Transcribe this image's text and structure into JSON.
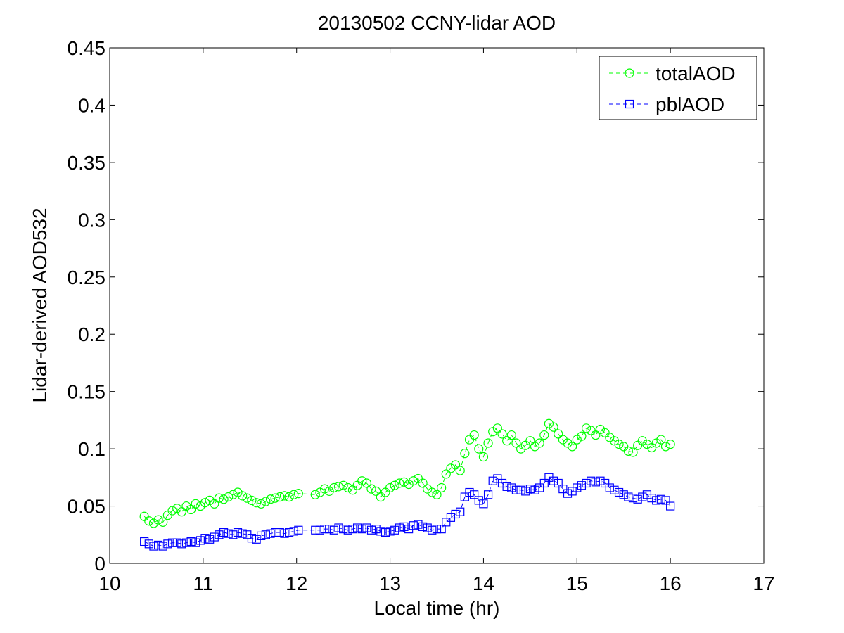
{
  "chart_data": {
    "type": "line",
    "title": "20130502 CCNY-lidar AOD",
    "xlabel": "Local time (hr)",
    "ylabel": "Lidar-derived AOD532",
    "xlim": [
      10,
      17
    ],
    "ylim": [
      0,
      0.45
    ],
    "x_ticks": [
      "10",
      "11",
      "12",
      "13",
      "14",
      "15",
      "16",
      "17"
    ],
    "y_ticks": [
      "0",
      "0.05",
      "0.1",
      "0.15",
      "0.2",
      "0.25",
      "0.3",
      "0.35",
      "0.4",
      "0.45"
    ],
    "grid": false,
    "legend_position": "top-right",
    "series": [
      {
        "name": "totalAOD",
        "color": "#00ff00",
        "marker": "circle",
        "line_style": "dashed",
        "x": [
          10.37,
          10.42,
          10.47,
          10.52,
          10.57,
          10.62,
          10.67,
          10.72,
          10.77,
          10.82,
          10.87,
          10.92,
          10.97,
          11.02,
          11.07,
          11.12,
          11.17,
          11.22,
          11.27,
          11.32,
          11.37,
          11.42,
          11.47,
          11.52,
          11.57,
          11.62,
          11.67,
          11.72,
          11.77,
          11.82,
          11.87,
          11.92,
          11.97,
          12.02,
          12.2,
          12.25,
          12.3,
          12.35,
          12.4,
          12.45,
          12.5,
          12.55,
          12.6,
          12.65,
          12.7,
          12.75,
          12.8,
          12.85,
          12.9,
          12.95,
          13.0,
          13.05,
          13.1,
          13.15,
          13.2,
          13.25,
          13.3,
          13.35,
          13.4,
          13.45,
          13.5,
          13.55,
          13.6,
          13.65,
          13.7,
          13.75,
          13.8,
          13.85,
          13.9,
          13.95,
          14.0,
          14.05,
          14.1,
          14.15,
          14.2,
          14.25,
          14.3,
          14.35,
          14.4,
          14.45,
          14.5,
          14.55,
          14.6,
          14.65,
          14.7,
          14.75,
          14.8,
          14.85,
          14.9,
          14.95,
          15.0,
          15.05,
          15.1,
          15.15,
          15.2,
          15.25,
          15.3,
          15.35,
          15.4,
          15.45,
          15.5,
          15.55,
          15.6,
          15.65,
          15.7,
          15.75,
          15.8,
          15.85,
          15.9,
          15.95,
          16.0
        ],
        "y": [
          0.041,
          0.037,
          0.035,
          0.038,
          0.036,
          0.042,
          0.046,
          0.048,
          0.045,
          0.05,
          0.047,
          0.052,
          0.05,
          0.053,
          0.055,
          0.052,
          0.057,
          0.056,
          0.058,
          0.06,
          0.062,
          0.059,
          0.057,
          0.055,
          0.053,
          0.052,
          0.054,
          0.056,
          0.057,
          0.058,
          0.059,
          0.058,
          0.06,
          0.061,
          0.06,
          0.062,
          0.065,
          0.063,
          0.066,
          0.067,
          0.068,
          0.066,
          0.064,
          0.068,
          0.072,
          0.07,
          0.065,
          0.063,
          0.058,
          0.062,
          0.066,
          0.068,
          0.07,
          0.071,
          0.069,
          0.072,
          0.074,
          0.07,
          0.065,
          0.062,
          0.06,
          0.066,
          0.078,
          0.083,
          0.086,
          0.081,
          0.096,
          0.108,
          0.112,
          0.1,
          0.093,
          0.105,
          0.115,
          0.118,
          0.113,
          0.107,
          0.112,
          0.105,
          0.1,
          0.103,
          0.107,
          0.102,
          0.105,
          0.112,
          0.122,
          0.119,
          0.113,
          0.108,
          0.105,
          0.102,
          0.108,
          0.111,
          0.118,
          0.116,
          0.112,
          0.117,
          0.114,
          0.11,
          0.107,
          0.104,
          0.102,
          0.098,
          0.097,
          0.103,
          0.107,
          0.104,
          0.101,
          0.105,
          0.108,
          0.102,
          0.104
        ]
      },
      {
        "name": "pblAOD",
        "color": "#0000ff",
        "marker": "square",
        "line_style": "dashed",
        "x": [
          10.37,
          10.42,
          10.47,
          10.52,
          10.57,
          10.62,
          10.67,
          10.72,
          10.77,
          10.82,
          10.87,
          10.92,
          10.97,
          11.02,
          11.07,
          11.12,
          11.17,
          11.22,
          11.27,
          11.32,
          11.37,
          11.42,
          11.47,
          11.52,
          11.57,
          11.62,
          11.67,
          11.72,
          11.77,
          11.82,
          11.87,
          11.92,
          11.97,
          12.02,
          12.2,
          12.25,
          12.3,
          12.35,
          12.4,
          12.45,
          12.5,
          12.55,
          12.6,
          12.65,
          12.7,
          12.75,
          12.8,
          12.85,
          12.9,
          12.95,
          13.0,
          13.05,
          13.1,
          13.15,
          13.2,
          13.25,
          13.3,
          13.35,
          13.4,
          13.45,
          13.5,
          13.55,
          13.6,
          13.65,
          13.7,
          13.75,
          13.8,
          13.85,
          13.9,
          13.95,
          14.0,
          14.05,
          14.1,
          14.15,
          14.2,
          14.25,
          14.3,
          14.35,
          14.4,
          14.45,
          14.5,
          14.55,
          14.6,
          14.65,
          14.7,
          14.75,
          14.8,
          14.85,
          14.9,
          14.95,
          15.0,
          15.05,
          15.1,
          15.15,
          15.2,
          15.25,
          15.3,
          15.35,
          15.4,
          15.45,
          15.5,
          15.55,
          15.6,
          15.65,
          15.7,
          15.75,
          15.8,
          15.85,
          15.9,
          15.95,
          16.0
        ],
        "y": [
          0.019,
          0.017,
          0.015,
          0.016,
          0.015,
          0.017,
          0.018,
          0.018,
          0.017,
          0.018,
          0.019,
          0.018,
          0.02,
          0.022,
          0.021,
          0.023,
          0.025,
          0.027,
          0.026,
          0.025,
          0.027,
          0.026,
          0.025,
          0.022,
          0.021,
          0.024,
          0.025,
          0.026,
          0.027,
          0.027,
          0.026,
          0.027,
          0.028,
          0.029,
          0.029,
          0.029,
          0.03,
          0.03,
          0.029,
          0.031,
          0.03,
          0.029,
          0.03,
          0.031,
          0.03,
          0.031,
          0.029,
          0.03,
          0.028,
          0.027,
          0.028,
          0.029,
          0.031,
          0.032,
          0.03,
          0.033,
          0.034,
          0.032,
          0.031,
          0.029,
          0.03,
          0.03,
          0.036,
          0.04,
          0.043,
          0.045,
          0.058,
          0.062,
          0.06,
          0.055,
          0.052,
          0.06,
          0.072,
          0.074,
          0.07,
          0.067,
          0.066,
          0.064,
          0.064,
          0.063,
          0.065,
          0.064,
          0.066,
          0.07,
          0.075,
          0.072,
          0.07,
          0.065,
          0.061,
          0.063,
          0.066,
          0.068,
          0.07,
          0.072,
          0.071,
          0.072,
          0.07,
          0.066,
          0.064,
          0.062,
          0.06,
          0.058,
          0.057,
          0.056,
          0.058,
          0.06,
          0.057,
          0.055,
          0.056,
          0.055,
          0.05
        ]
      }
    ]
  }
}
